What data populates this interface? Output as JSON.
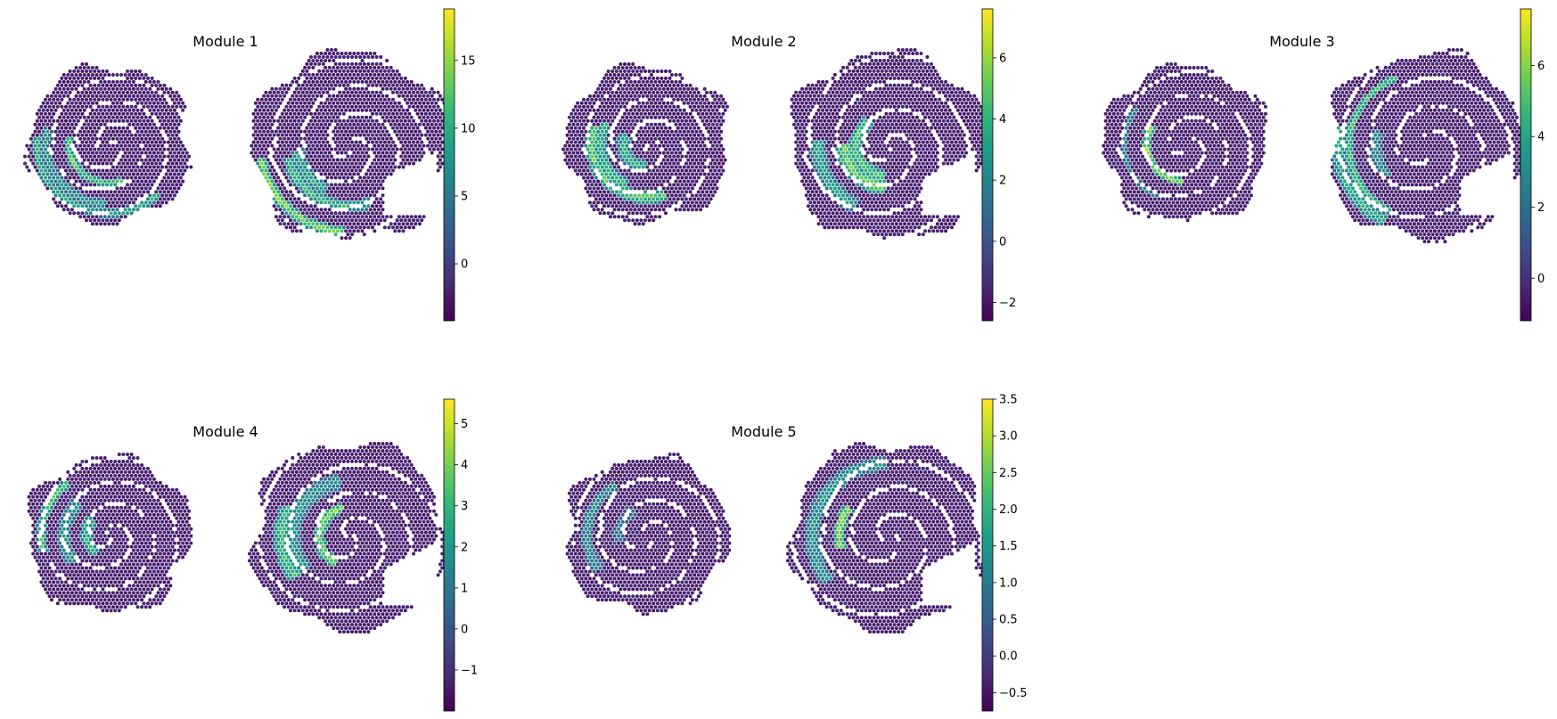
{
  "chart_data": [
    {
      "type": "heatmap",
      "title": "Module 1",
      "colormap": "viridis",
      "colorbar": {
        "vmin": -4.2,
        "vmax": 18.8,
        "ticks": [
          0,
          5,
          10,
          15
        ]
      },
      "sections": [
        {
          "regions": [
            {
              "v": 12,
              "w": 1.0
            },
            {
              "v": 15,
              "w": 0.9
            },
            {
              "v": 9,
              "w": 1.2
            }
          ]
        },
        {
          "regions": [
            {
              "v": 13,
              "w": 1.1
            },
            {
              "v": 17,
              "w": 1.0
            },
            {
              "v": 11,
              "w": 1.3
            }
          ]
        }
      ]
    },
    {
      "type": "heatmap",
      "title": "Module 2",
      "colormap": "viridis",
      "colorbar": {
        "vmin": -2.6,
        "vmax": 7.6,
        "ticks": [
          -2,
          0,
          2,
          4,
          6
        ]
      },
      "sections": [
        {
          "regions": [
            {
              "v": 6,
              "w": 1.5
            },
            {
              "v": 4.5,
              "w": 1.6
            },
            {
              "v": 5,
              "w": 1.2
            }
          ]
        },
        {
          "regions": [
            {
              "v": 6.5,
              "w": 1.6
            },
            {
              "v": 4,
              "w": 1.5
            },
            {
              "v": 5.5,
              "w": 1.3
            }
          ]
        }
      ]
    },
    {
      "type": "heatmap",
      "title": "Module 3",
      "colormap": "viridis",
      "colorbar": {
        "vmin": -1.2,
        "vmax": 7.6,
        "ticks": [
          0,
          2,
          4,
          6
        ]
      },
      "sections": [
        {
          "regions": [
            {
              "v": 7.4,
              "w": 0.9
            },
            {
              "v": 3.5,
              "w": 0.7
            }
          ]
        },
        {
          "regions": [
            {
              "v": 5,
              "w": 1.4
            },
            {
              "v": 3.8,
              "w": 1.2
            },
            {
              "v": 6,
              "w": 0.7
            }
          ]
        }
      ]
    },
    {
      "type": "heatmap",
      "title": "Module 4",
      "colormap": "viridis",
      "colorbar": {
        "vmin": -2.0,
        "vmax": 5.6,
        "ticks": [
          -1,
          0,
          1,
          2,
          3,
          4,
          5
        ]
      },
      "sections": [
        {
          "regions": [
            {
              "v": 3.5,
              "w": 1.4
            },
            {
              "v": 2.5,
              "w": 1.5
            },
            {
              "v": 4.5,
              "w": 1.0
            }
          ]
        },
        {
          "regions": [
            {
              "v": 3.8,
              "w": 1.5
            },
            {
              "v": 5.2,
              "w": 1.0
            },
            {
              "v": 2.6,
              "w": 1.6
            }
          ]
        }
      ]
    },
    {
      "type": "heatmap",
      "title": "Module 5",
      "colormap": "viridis",
      "colorbar": {
        "vmin": -0.75,
        "vmax": 3.5,
        "ticks": [
          -0.5,
          0.0,
          0.5,
          1.0,
          1.5,
          2.0,
          2.5,
          3.0,
          3.5
        ]
      },
      "sections": [
        {
          "regions": [
            {
              "v": 1.6,
              "w": 1.3
            },
            {
              "v": 1.2,
              "w": 1.4
            }
          ]
        },
        {
          "regions": [
            {
              "v": 3.4,
              "w": 1.0
            },
            {
              "v": 1.8,
              "w": 1.4
            }
          ]
        }
      ]
    }
  ]
}
